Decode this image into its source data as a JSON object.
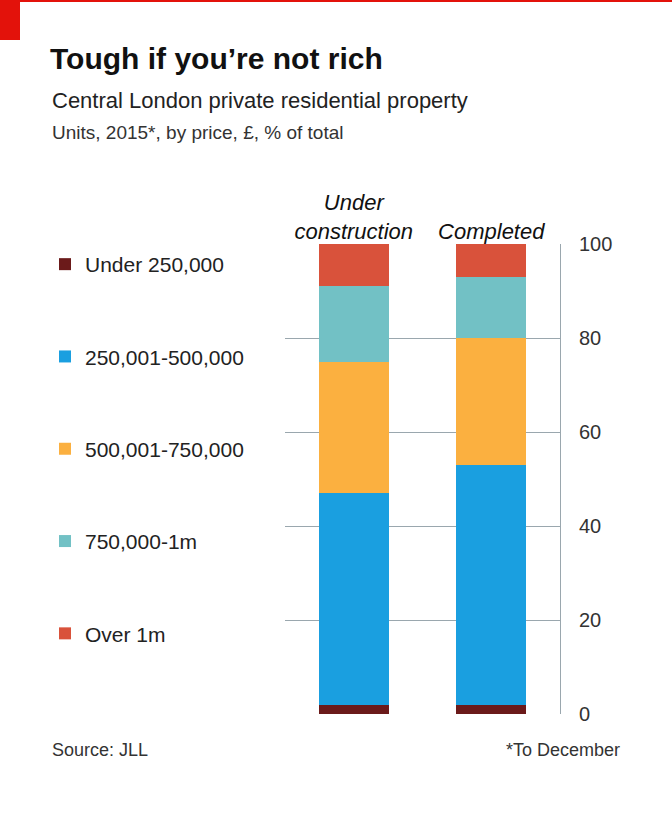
{
  "chart_data": {
    "type": "bar",
    "title": "Tough if you’re not rich",
    "subtitle": "Central London private residential property",
    "annotations": [
      "Units, 2015*, by price, £, % of total",
      "Source: JLL",
      "*To December"
    ],
    "categories": [
      "Under construction",
      "Completed"
    ],
    "series": [
      {
        "name": "Under 250,000",
        "color": "#6b1a1a",
        "values": [
          2,
          2
        ]
      },
      {
        "name": "250,001-500,000",
        "color": "#1a9fe0",
        "values": [
          45,
          51
        ]
      },
      {
        "name": "500,001-750,000",
        "color": "#fbb040",
        "values": [
          28,
          27
        ]
      },
      {
        "name": "750,000-1m",
        "color": "#72c1c5",
        "values": [
          16,
          13
        ]
      },
      {
        "name": "Over 1m",
        "color": "#d9523b",
        "values": [
          9,
          7
        ]
      }
    ],
    "ylim": [
      0,
      100
    ],
    "yticks": [
      0,
      20,
      40,
      60,
      80,
      100
    ],
    "grid": true,
    "stacked": true,
    "legend": "left",
    "data_labels": false
  }
}
